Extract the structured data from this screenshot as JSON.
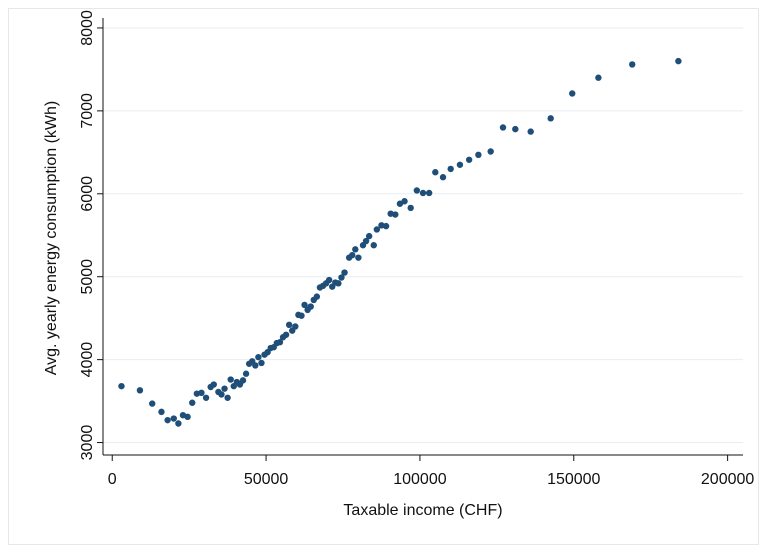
{
  "chart_data": {
    "type": "scatter",
    "title": "",
    "xlabel": "Taxable income (CHF)",
    "ylabel": "Avg. yearly energy consumption (kWh)",
    "xlim": [
      -3000,
      205000
    ],
    "ylim": [
      2850,
      8120
    ],
    "x_ticks": [
      0,
      50000,
      100000,
      150000,
      200000
    ],
    "x_tick_labels": [
      "0",
      "50000",
      "100000",
      "150000",
      "200000"
    ],
    "y_ticks": [
      3000,
      4000,
      5000,
      6000,
      7000,
      8000
    ],
    "y_tick_labels": [
      "3000",
      "4000",
      "5000",
      "6000",
      "7000",
      "8000"
    ],
    "grid": "horizontal",
    "marker_color": "#1f4e79",
    "points": [
      [
        3000,
        3680
      ],
      [
        9000,
        3630
      ],
      [
        13000,
        3470
      ],
      [
        16000,
        3370
      ],
      [
        18000,
        3270
      ],
      [
        20000,
        3290
      ],
      [
        21500,
        3230
      ],
      [
        23000,
        3330
      ],
      [
        24500,
        3310
      ],
      [
        26000,
        3480
      ],
      [
        27500,
        3590
      ],
      [
        29000,
        3600
      ],
      [
        30500,
        3540
      ],
      [
        32000,
        3670
      ],
      [
        33000,
        3700
      ],
      [
        34500,
        3610
      ],
      [
        35500,
        3580
      ],
      [
        36500,
        3650
      ],
      [
        37500,
        3540
      ],
      [
        38500,
        3760
      ],
      [
        39500,
        3680
      ],
      [
        40500,
        3730
      ],
      [
        41500,
        3700
      ],
      [
        42500,
        3750
      ],
      [
        43500,
        3830
      ],
      [
        44500,
        3950
      ],
      [
        45500,
        3980
      ],
      [
        46500,
        3930
      ],
      [
        47500,
        4030
      ],
      [
        48500,
        3960
      ],
      [
        49500,
        4060
      ],
      [
        50500,
        4090
      ],
      [
        51500,
        4140
      ],
      [
        52500,
        4150
      ],
      [
        53500,
        4200
      ],
      [
        54500,
        4210
      ],
      [
        55500,
        4270
      ],
      [
        56500,
        4300
      ],
      [
        57500,
        4420
      ],
      [
        58500,
        4350
      ],
      [
        59500,
        4400
      ],
      [
        60500,
        4540
      ],
      [
        61500,
        4530
      ],
      [
        62500,
        4660
      ],
      [
        63500,
        4600
      ],
      [
        64500,
        4640
      ],
      [
        65500,
        4720
      ],
      [
        66500,
        4760
      ],
      [
        67500,
        4870
      ],
      [
        68500,
        4890
      ],
      [
        69500,
        4920
      ],
      [
        70500,
        4960
      ],
      [
        71500,
        4880
      ],
      [
        72500,
        4930
      ],
      [
        73500,
        4920
      ],
      [
        74500,
        4990
      ],
      [
        75500,
        5050
      ],
      [
        77000,
        5230
      ],
      [
        78000,
        5260
      ],
      [
        79000,
        5330
      ],
      [
        80000,
        5230
      ],
      [
        81500,
        5380
      ],
      [
        82500,
        5430
      ],
      [
        83500,
        5490
      ],
      [
        85000,
        5380
      ],
      [
        86000,
        5570
      ],
      [
        87500,
        5620
      ],
      [
        89000,
        5610
      ],
      [
        90500,
        5760
      ],
      [
        92000,
        5750
      ],
      [
        93500,
        5880
      ],
      [
        95000,
        5910
      ],
      [
        97000,
        5830
      ],
      [
        99000,
        6040
      ],
      [
        101000,
        6010
      ],
      [
        103000,
        6010
      ],
      [
        105000,
        6260
      ],
      [
        107500,
        6200
      ],
      [
        110000,
        6300
      ],
      [
        113000,
        6350
      ],
      [
        116000,
        6410
      ],
      [
        119000,
        6470
      ],
      [
        123000,
        6510
      ],
      [
        127000,
        6800
      ],
      [
        131000,
        6780
      ],
      [
        136000,
        6750
      ],
      [
        142500,
        6910
      ],
      [
        149500,
        7210
      ],
      [
        158000,
        7400
      ],
      [
        169000,
        7560
      ],
      [
        184000,
        7600
      ]
    ]
  }
}
